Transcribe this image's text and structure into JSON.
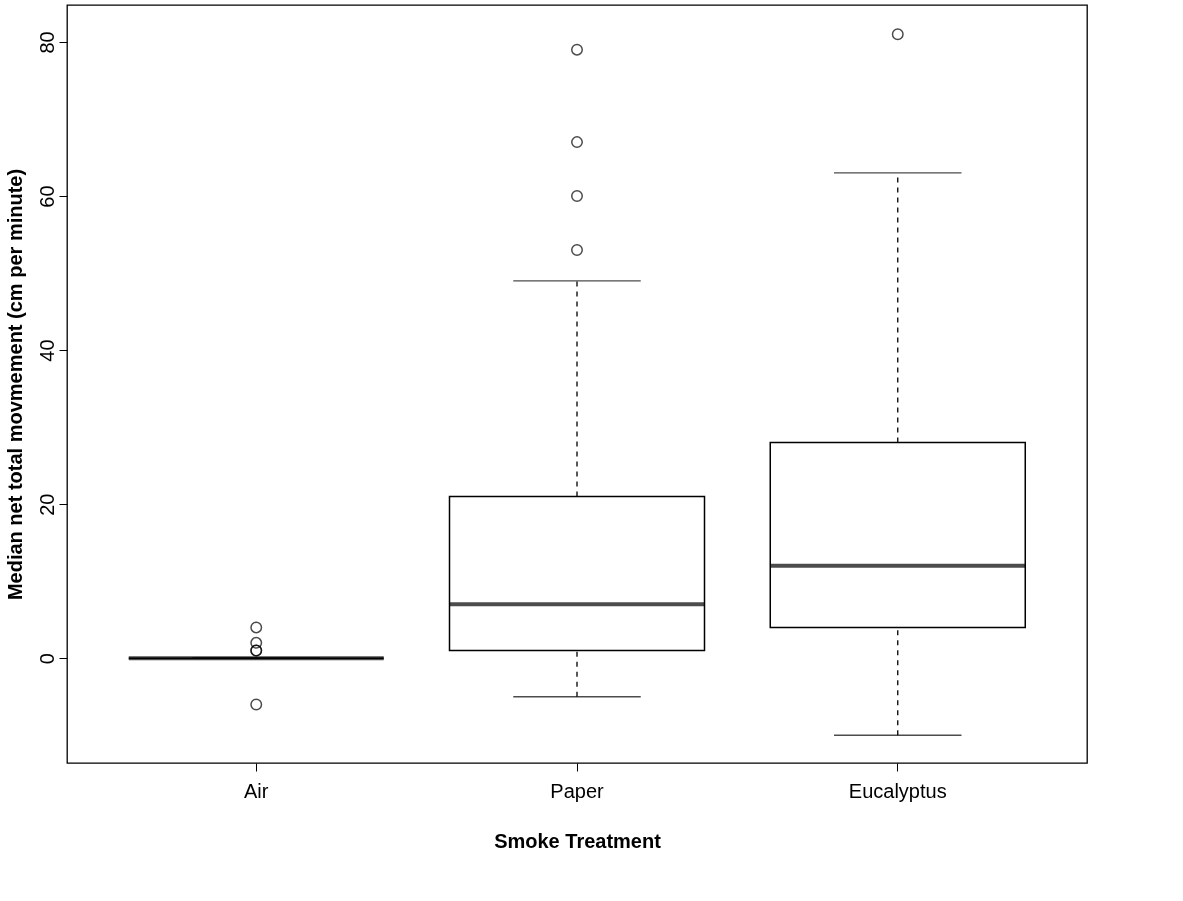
{
  "chart_data": {
    "type": "box",
    "xlabel": "Smoke Treatment",
    "ylabel": "Median net total movmement (cm per minute)",
    "categories": [
      "Air",
      "Paper",
      "Eucalyptus"
    ],
    "boxes": [
      {
        "low": 0,
        "q1": 0,
        "median": 0,
        "q3": 0,
        "high": 0,
        "outliers": [
          4,
          2,
          1,
          1,
          -6
        ]
      },
      {
        "low": -5,
        "q1": 1,
        "median": 7,
        "q3": 21,
        "high": 49,
        "outliers": [
          53,
          60,
          67,
          79
        ]
      },
      {
        "low": -10,
        "q1": 4,
        "median": 12,
        "q3": 28,
        "high": 63,
        "outliers": [
          81
        ]
      }
    ],
    "ylim": [
      -13.6,
      84.8
    ],
    "yticks": [
      0,
      20,
      40,
      60,
      80
    ]
  }
}
